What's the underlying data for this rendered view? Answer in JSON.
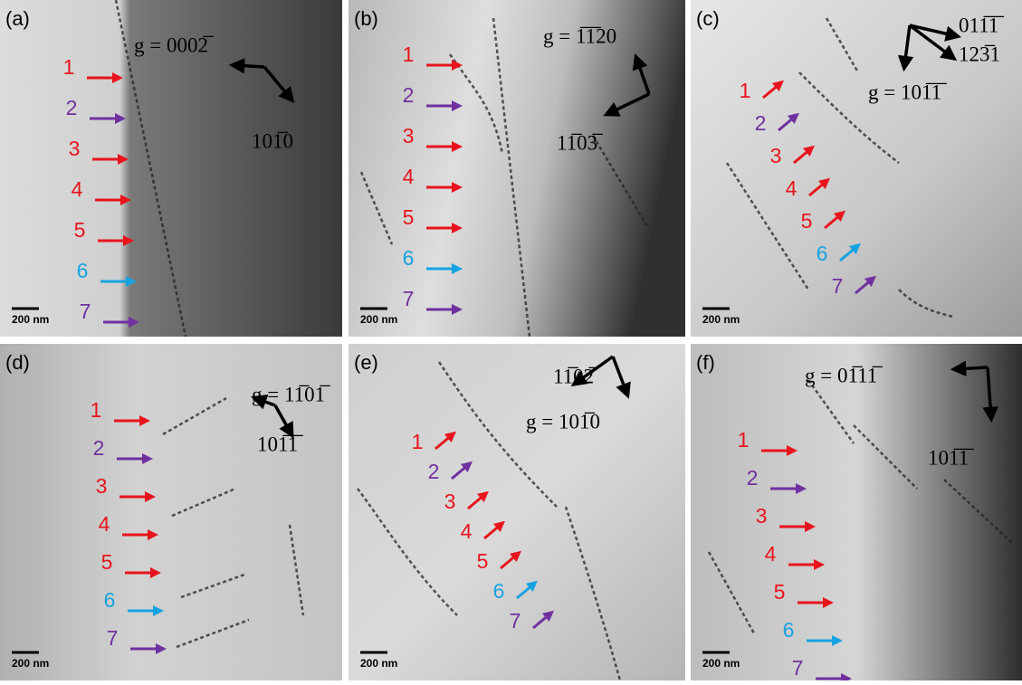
{
  "panels": [
    {
      "label": "(a)",
      "scale_bar": "200 nm",
      "annotations": [
        "g = 0002̅",
        "101̅0"
      ],
      "arrows": [
        {
          "label": "1",
          "color": "#e8141c"
        },
        {
          "label": "2",
          "color": "#7030a0"
        },
        {
          "label": "3",
          "color": "#e8141c"
        },
        {
          "label": "4",
          "color": "#e8141c"
        },
        {
          "label": "5",
          "color": "#e8141c"
        },
        {
          "label": "6",
          "color": "#17a3e0"
        },
        {
          "label": "7",
          "color": "#7030a0"
        }
      ]
    },
    {
      "label": "(b)",
      "scale_bar": "200 nm",
      "annotations": [
        "g = 1̅1̅20",
        "11̅03̅"
      ],
      "arrows": [
        {
          "label": "1",
          "color": "#e8141c"
        },
        {
          "label": "2",
          "color": "#7030a0"
        },
        {
          "label": "3",
          "color": "#e8141c"
        },
        {
          "label": "4",
          "color": "#e8141c"
        },
        {
          "label": "5",
          "color": "#e8141c"
        },
        {
          "label": "6",
          "color": "#17a3e0"
        },
        {
          "label": "7",
          "color": "#7030a0"
        }
      ]
    },
    {
      "label": "(c)",
      "scale_bar": "200 nm",
      "annotations": [
        "011̅1̅",
        "123̅1",
        "g = 101̅1̅"
      ],
      "arrows": [
        {
          "label": "1",
          "color": "#e8141c"
        },
        {
          "label": "2",
          "color": "#7030a0"
        },
        {
          "label": "3",
          "color": "#e8141c"
        },
        {
          "label": "4",
          "color": "#e8141c"
        },
        {
          "label": "5",
          "color": "#e8141c"
        },
        {
          "label": "6",
          "color": "#17a3e0"
        },
        {
          "label": "7",
          "color": "#7030a0"
        }
      ]
    },
    {
      "label": "(d)",
      "scale_bar": "200 nm",
      "annotations": [
        "g = 11̅01̅",
        "101̅1̅"
      ],
      "arrows": [
        {
          "label": "1",
          "color": "#e8141c"
        },
        {
          "label": "2",
          "color": "#7030a0"
        },
        {
          "label": "3",
          "color": "#e8141c"
        },
        {
          "label": "4",
          "color": "#e8141c"
        },
        {
          "label": "5",
          "color": "#e8141c"
        },
        {
          "label": "6",
          "color": "#17a3e0"
        },
        {
          "label": "7",
          "color": "#7030a0"
        }
      ]
    },
    {
      "label": "(e)",
      "scale_bar": "200 nm",
      "annotations": [
        "11̅02̅",
        "g = 101̅0"
      ],
      "arrows": [
        {
          "label": "1",
          "color": "#e8141c"
        },
        {
          "label": "2",
          "color": "#7030a0"
        },
        {
          "label": "3",
          "color": "#e8141c"
        },
        {
          "label": "4",
          "color": "#e8141c"
        },
        {
          "label": "5",
          "color": "#e8141c"
        },
        {
          "label": "6",
          "color": "#17a3e0"
        },
        {
          "label": "7",
          "color": "#7030a0"
        }
      ]
    },
    {
      "label": "(f)",
      "scale_bar": "200 nm",
      "annotations": [
        "g = 01̅11̅",
        "101̅1̅"
      ],
      "arrows": [
        {
          "label": "1",
          "color": "#e8141c"
        },
        {
          "label": "2",
          "color": "#7030a0"
        },
        {
          "label": "3",
          "color": "#e8141c"
        },
        {
          "label": "4",
          "color": "#e8141c"
        },
        {
          "label": "5",
          "color": "#e8141c"
        },
        {
          "label": "6",
          "color": "#17a3e0"
        },
        {
          "label": "7",
          "color": "#7030a0"
        }
      ]
    }
  ]
}
